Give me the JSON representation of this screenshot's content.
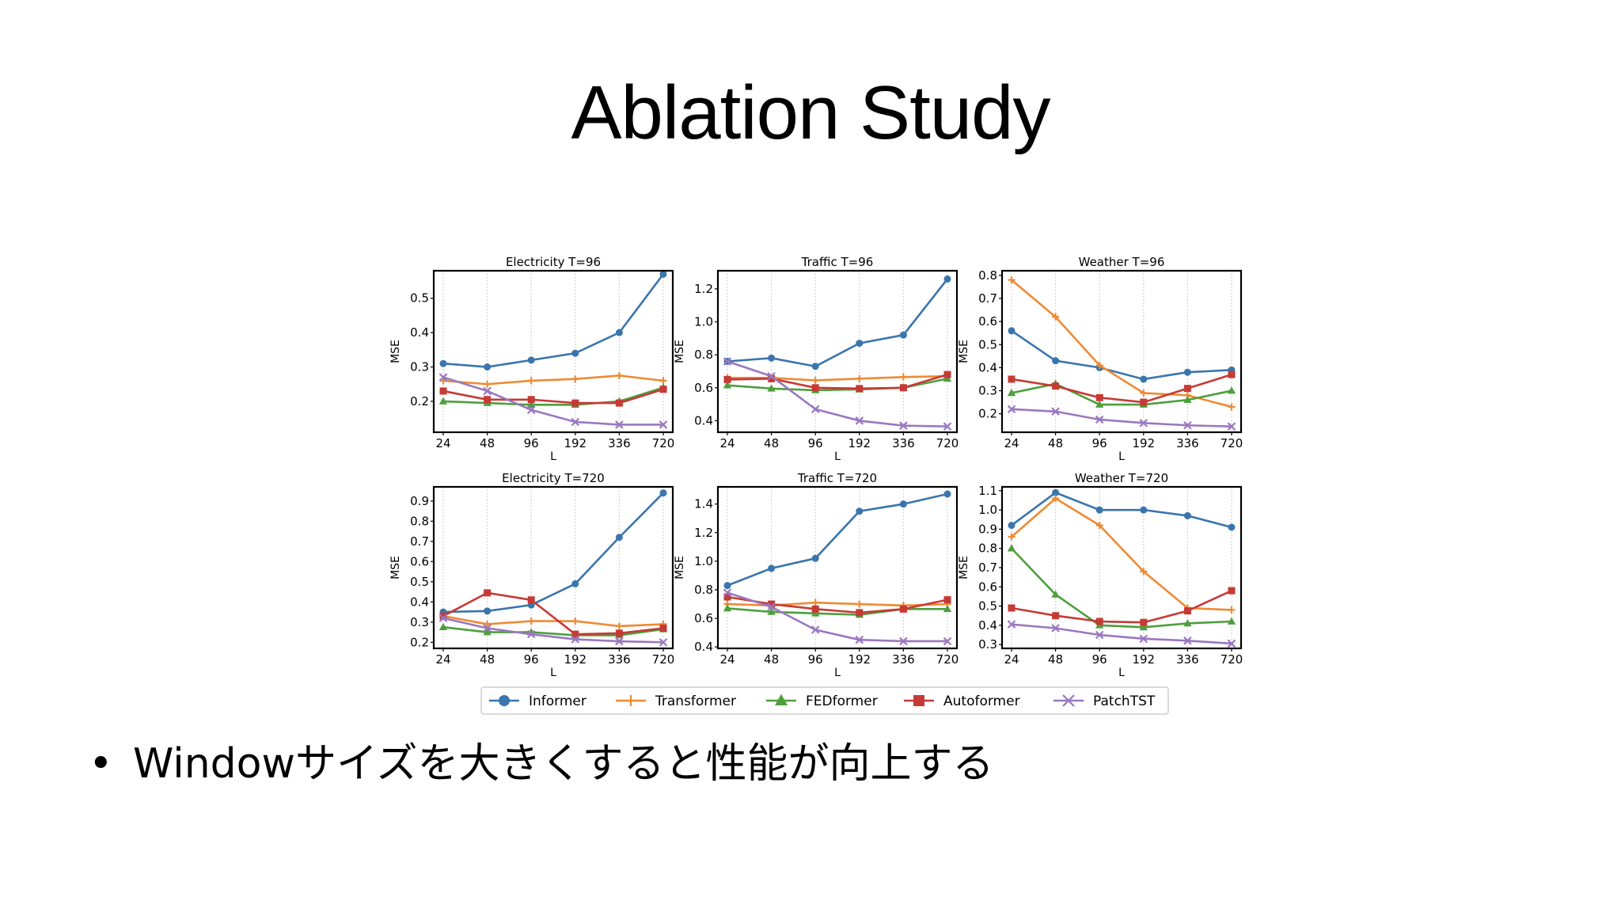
{
  "slide": {
    "title": "Ablation Study",
    "bullet_marker": "•",
    "bullet": "Windowサイズを大きくすると性能が向上する"
  },
  "colors": {
    "Informer": "#3a75ad",
    "Transformer": "#ef8a33",
    "FEDformer": "#4e9f3d",
    "Autoformer": "#c63a36",
    "PatchTST": "#9a78bf"
  },
  "legend": {
    "placement": "bottom-center",
    "entries": [
      {
        "name": "Informer",
        "marker": "circle"
      },
      {
        "name": "Transformer",
        "marker": "plus"
      },
      {
        "name": "FEDformer",
        "marker": "triangle"
      },
      {
        "name": "Autoformer",
        "marker": "square"
      },
      {
        "name": "PatchTST",
        "marker": "x"
      }
    ]
  },
  "chart_data": [
    {
      "type": "line",
      "title": "Electricity T=96",
      "xlabel": "L",
      "ylabel": "MSE",
      "categories": [
        "24",
        "48",
        "96",
        "192",
        "336",
        "720"
      ],
      "ylim": [
        0.11,
        0.58
      ],
      "yticks": [
        "0.2",
        "0.3",
        "0.4",
        "0.5"
      ],
      "grid": "x",
      "series": [
        {
          "name": "Informer",
          "values": [
            0.31,
            0.3,
            0.32,
            0.34,
            0.4,
            0.57
          ]
        },
        {
          "name": "Transformer",
          "values": [
            0.26,
            0.25,
            0.26,
            0.265,
            0.275,
            0.26
          ]
        },
        {
          "name": "FEDformer",
          "values": [
            0.2,
            0.195,
            0.19,
            0.19,
            0.2,
            0.24
          ]
        },
        {
          "name": "Autoformer",
          "values": [
            0.23,
            0.205,
            0.205,
            0.195,
            0.195,
            0.235
          ]
        },
        {
          "name": "PatchTST",
          "values": [
            0.27,
            0.23,
            0.175,
            0.14,
            0.132,
            0.132
          ]
        }
      ]
    },
    {
      "type": "line",
      "title": "Traffic T=96",
      "xlabel": "L",
      "ylabel": "MSE",
      "categories": [
        "24",
        "48",
        "96",
        "192",
        "336",
        "720"
      ],
      "ylim": [
        0.33,
        1.31
      ],
      "yticks": [
        "0.4",
        "0.6",
        "0.8",
        "1.0",
        "1.2"
      ],
      "grid": "x",
      "series": [
        {
          "name": "Informer",
          "values": [
            0.76,
            0.78,
            0.73,
            0.87,
            0.92,
            1.26
          ]
        },
        {
          "name": "Transformer",
          "values": [
            0.66,
            0.66,
            0.645,
            0.655,
            0.665,
            0.67
          ]
        },
        {
          "name": "FEDformer",
          "values": [
            0.615,
            0.595,
            0.585,
            0.59,
            0.6,
            0.655
          ]
        },
        {
          "name": "Autoformer",
          "values": [
            0.65,
            0.655,
            0.6,
            0.595,
            0.6,
            0.68
          ]
        },
        {
          "name": "PatchTST",
          "values": [
            0.76,
            0.67,
            0.47,
            0.4,
            0.37,
            0.365
          ]
        }
      ]
    },
    {
      "type": "line",
      "title": "Weather T=96",
      "xlabel": "L",
      "ylabel": "MSE",
      "categories": [
        "24",
        "48",
        "96",
        "192",
        "336",
        "720"
      ],
      "ylim": [
        0.12,
        0.82
      ],
      "yticks": [
        "0.2",
        "0.3",
        "0.4",
        "0.5",
        "0.6",
        "0.7",
        "0.8"
      ],
      "grid": "x",
      "series": [
        {
          "name": "Informer",
          "values": [
            0.56,
            0.43,
            0.4,
            0.35,
            0.38,
            0.39
          ]
        },
        {
          "name": "Transformer",
          "values": [
            0.78,
            0.62,
            0.41,
            0.29,
            0.28,
            0.23
          ]
        },
        {
          "name": "FEDformer",
          "values": [
            0.29,
            0.33,
            0.24,
            0.24,
            0.26,
            0.3
          ]
        },
        {
          "name": "Autoformer",
          "values": [
            0.35,
            0.32,
            0.27,
            0.25,
            0.31,
            0.37
          ]
        },
        {
          "name": "PatchTST",
          "values": [
            0.22,
            0.21,
            0.175,
            0.16,
            0.15,
            0.145
          ]
        }
      ]
    },
    {
      "type": "line",
      "title": "Electricity T=720",
      "xlabel": "L",
      "ylabel": "MSE",
      "categories": [
        "24",
        "48",
        "96",
        "192",
        "336",
        "720"
      ],
      "ylim": [
        0.17,
        0.97
      ],
      "yticks": [
        "0.2",
        "0.3",
        "0.4",
        "0.5",
        "0.6",
        "0.7",
        "0.8",
        "0.9"
      ],
      "grid": "x",
      "series": [
        {
          "name": "Informer",
          "values": [
            0.35,
            0.355,
            0.385,
            0.49,
            0.72,
            0.94
          ]
        },
        {
          "name": "Transformer",
          "values": [
            0.33,
            0.29,
            0.305,
            0.305,
            0.28,
            0.29
          ]
        },
        {
          "name": "FEDformer",
          "values": [
            0.275,
            0.25,
            0.25,
            0.235,
            0.235,
            0.265
          ]
        },
        {
          "name": "Autoformer",
          "values": [
            0.33,
            0.445,
            0.41,
            0.24,
            0.245,
            0.27
          ]
        },
        {
          "name": "PatchTST",
          "values": [
            0.32,
            0.27,
            0.24,
            0.215,
            0.205,
            0.2
          ]
        }
      ]
    },
    {
      "type": "line",
      "title": "Traffic T=720",
      "xlabel": "L",
      "ylabel": "MSE",
      "categories": [
        "24",
        "48",
        "96",
        "192",
        "336",
        "720"
      ],
      "ylim": [
        0.39,
        1.52
      ],
      "yticks": [
        "0.4",
        "0.6",
        "0.8",
        "1.0",
        "1.2",
        "1.4"
      ],
      "grid": "x",
      "series": [
        {
          "name": "Informer",
          "values": [
            0.83,
            0.95,
            1.02,
            1.35,
            1.4,
            1.47
          ]
        },
        {
          "name": "Transformer",
          "values": [
            0.7,
            0.69,
            0.71,
            0.7,
            0.69,
            0.7
          ]
        },
        {
          "name": "FEDformer",
          "values": [
            0.67,
            0.645,
            0.635,
            0.625,
            0.665,
            0.665
          ]
        },
        {
          "name": "Autoformer",
          "values": [
            0.75,
            0.7,
            0.665,
            0.64,
            0.665,
            0.73
          ]
        },
        {
          "name": "PatchTST",
          "values": [
            0.78,
            0.68,
            0.52,
            0.45,
            0.44,
            0.44
          ]
        }
      ]
    },
    {
      "type": "line",
      "title": "Weather T=720",
      "xlabel": "L",
      "ylabel": "MSE",
      "categories": [
        "24",
        "48",
        "96",
        "192",
        "336",
        "720"
      ],
      "ylim": [
        0.28,
        1.12
      ],
      "yticks": [
        "0.3",
        "0.4",
        "0.5",
        "0.6",
        "0.7",
        "0.8",
        "0.9",
        "1.0",
        "1.1"
      ],
      "grid": "x",
      "series": [
        {
          "name": "Informer",
          "values": [
            0.92,
            1.09,
            1.0,
            1.0,
            0.97,
            0.91
          ]
        },
        {
          "name": "Transformer",
          "values": [
            0.86,
            1.06,
            0.92,
            0.68,
            0.49,
            0.48
          ]
        },
        {
          "name": "FEDformer",
          "values": [
            0.8,
            0.56,
            0.4,
            0.39,
            0.41,
            0.42
          ]
        },
        {
          "name": "Autoformer",
          "values": [
            0.49,
            0.45,
            0.42,
            0.415,
            0.475,
            0.58
          ]
        },
        {
          "name": "PatchTST",
          "values": [
            0.405,
            0.385,
            0.35,
            0.33,
            0.32,
            0.305
          ]
        }
      ]
    }
  ]
}
